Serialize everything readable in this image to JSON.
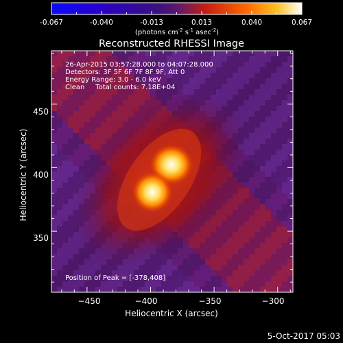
{
  "colorbar": {
    "ticks": [
      "-0.067",
      "-0.040",
      "-0.013",
      "0.013",
      "0.040",
      "0.067"
    ],
    "units_main": "(photons cm",
    "units_exp1": "-2",
    "units_mid": " s",
    "units_exp2": "-1",
    "units_end": " asec",
    "units_exp3": "-2",
    "units_close": ")"
  },
  "title": "Reconstructed RHESSI Image",
  "info": {
    "line1": "26-Apr-2015 03:57:28.000 to 04:07:28.000",
    "line2": "Detectors: 3F 5F 6F 7F 8F 9F, Att 0",
    "line3": "Energy Range: 3.0 - 6.0 keV",
    "line4": "Clean     Total counts: 7.18E+04"
  },
  "peak_label": "Position of Peak = [-378,408]",
  "axes": {
    "xlabel": "Heliocentric X (arcsec)",
    "ylabel": "Heliocentric Y (arcsec)",
    "xlim": [
      -478,
      -288
    ],
    "ylim": [
      302,
      492
    ],
    "xticks": [
      -450,
      -400,
      -350,
      -300
    ],
    "yticks": [
      350,
      400,
      450
    ],
    "xtick_labels": [
      "−450",
      "−400",
      "−350",
      "−300"
    ],
    "ytick_labels": [
      "350",
      "400",
      "450"
    ]
  },
  "timestamp": "5-Oct-2017 05:03"
}
